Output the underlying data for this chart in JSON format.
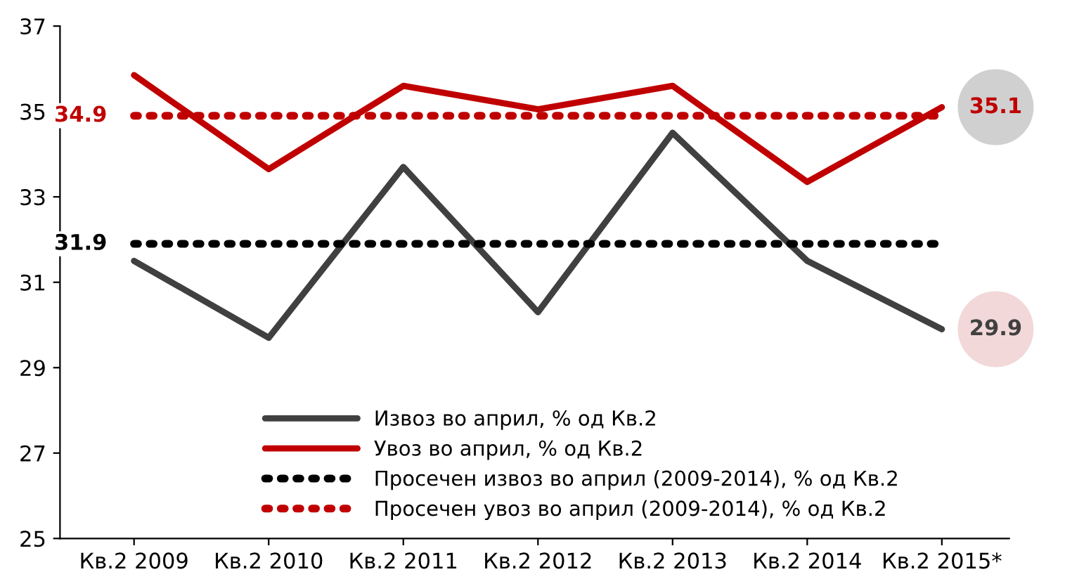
{
  "chart_data": {
    "type": "line",
    "categories": [
      "Кв.2 2009",
      "Кв.2 2010",
      "Кв.2 2011",
      "Кв.2 2012",
      "Кв.2 2013",
      "Кв.2 2014",
      "Кв.2 2015*"
    ],
    "series": [
      {
        "name": "Извоз во април, % од Кв.2",
        "color": "#404040",
        "line_style": "solid",
        "values": [
          31.5,
          29.7,
          33.7,
          30.3,
          34.5,
          31.5,
          29.9
        ],
        "value_labels": [
          null,
          null,
          null,
          null,
          null,
          null,
          "29.9"
        ]
      },
      {
        "name": "Увоз во април, % од Кв.2",
        "color": "#c00000",
        "line_style": "solid",
        "values": [
          35.85,
          33.65,
          35.6,
          35.05,
          35.6,
          33.35,
          35.1
        ],
        "value_labels": [
          null,
          null,
          null,
          null,
          null,
          null,
          "35.1"
        ]
      },
      {
        "name": "Просечен извоз во април (2009-2014), % од Кв.2",
        "color": "#000000",
        "line_style": "dotted",
        "values": [
          31.9,
          31.9,
          31.9,
          31.9,
          31.9,
          31.9,
          31.9
        ],
        "value_labels": [
          "31.9",
          null,
          null,
          null,
          null,
          null,
          null
        ]
      },
      {
        "name": "Просечен увоз во април (2009-2014), % од Кв.2",
        "color": "#c00000",
        "line_style": "dotted",
        "values": [
          34.9,
          34.9,
          34.9,
          34.9,
          34.9,
          34.9,
          34.9
        ],
        "value_labels": [
          "34.9",
          null,
          null,
          null,
          null,
          null,
          null
        ]
      }
    ],
    "ylim": [
      25,
      37
    ],
    "yticks": [
      25,
      27,
      29,
      31,
      33,
      35,
      37
    ],
    "grid": false,
    "legend": "bottom",
    "marker": "none"
  }
}
